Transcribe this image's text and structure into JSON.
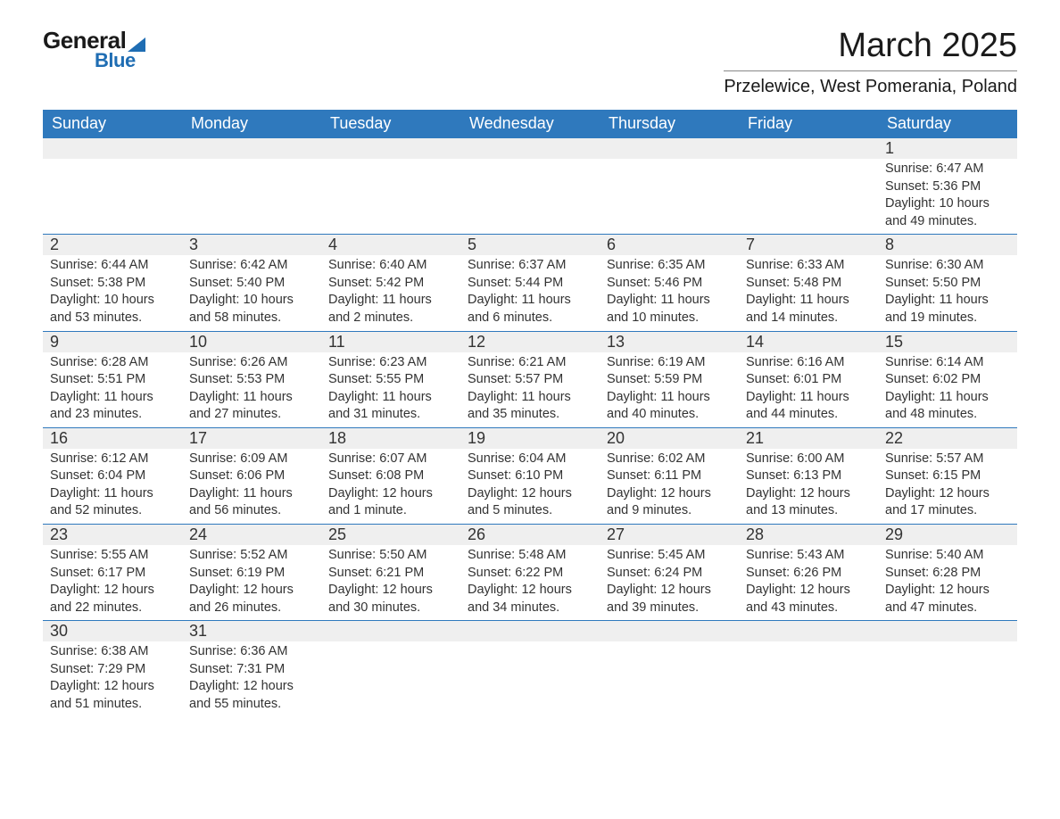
{
  "logo": {
    "text1": "General",
    "text2": "Blue"
  },
  "title": "March 2025",
  "subtitle": "Przelewice, West Pomerania, Poland",
  "colors": {
    "header_bg": "#2f79bd",
    "header_text": "#ffffff",
    "daynum_bg": "#efefef",
    "body_text": "#333333",
    "rule": "#2f79bd",
    "logo_accent": "#1f6db3"
  },
  "typography": {
    "title_fontsize": 38,
    "subtitle_fontsize": 20,
    "header_fontsize": 18,
    "daynum_fontsize": 18,
    "body_fontsize": 14.5
  },
  "weekdays": [
    "Sunday",
    "Monday",
    "Tuesday",
    "Wednesday",
    "Thursday",
    "Friday",
    "Saturday"
  ],
  "weeks": [
    [
      null,
      null,
      null,
      null,
      null,
      null,
      {
        "n": "1",
        "sunrise": "6:47 AM",
        "sunset": "5:36 PM",
        "daylight": "10 hours and 49 minutes."
      }
    ],
    [
      {
        "n": "2",
        "sunrise": "6:44 AM",
        "sunset": "5:38 PM",
        "daylight": "10 hours and 53 minutes."
      },
      {
        "n": "3",
        "sunrise": "6:42 AM",
        "sunset": "5:40 PM",
        "daylight": "10 hours and 58 minutes."
      },
      {
        "n": "4",
        "sunrise": "6:40 AM",
        "sunset": "5:42 PM",
        "daylight": "11 hours and 2 minutes."
      },
      {
        "n": "5",
        "sunrise": "6:37 AM",
        "sunset": "5:44 PM",
        "daylight": "11 hours and 6 minutes."
      },
      {
        "n": "6",
        "sunrise": "6:35 AM",
        "sunset": "5:46 PM",
        "daylight": "11 hours and 10 minutes."
      },
      {
        "n": "7",
        "sunrise": "6:33 AM",
        "sunset": "5:48 PM",
        "daylight": "11 hours and 14 minutes."
      },
      {
        "n": "8",
        "sunrise": "6:30 AM",
        "sunset": "5:50 PM",
        "daylight": "11 hours and 19 minutes."
      }
    ],
    [
      {
        "n": "9",
        "sunrise": "6:28 AM",
        "sunset": "5:51 PM",
        "daylight": "11 hours and 23 minutes."
      },
      {
        "n": "10",
        "sunrise": "6:26 AM",
        "sunset": "5:53 PM",
        "daylight": "11 hours and 27 minutes."
      },
      {
        "n": "11",
        "sunrise": "6:23 AM",
        "sunset": "5:55 PM",
        "daylight": "11 hours and 31 minutes."
      },
      {
        "n": "12",
        "sunrise": "6:21 AM",
        "sunset": "5:57 PM",
        "daylight": "11 hours and 35 minutes."
      },
      {
        "n": "13",
        "sunrise": "6:19 AM",
        "sunset": "5:59 PM",
        "daylight": "11 hours and 40 minutes."
      },
      {
        "n": "14",
        "sunrise": "6:16 AM",
        "sunset": "6:01 PM",
        "daylight": "11 hours and 44 minutes."
      },
      {
        "n": "15",
        "sunrise": "6:14 AM",
        "sunset": "6:02 PM",
        "daylight": "11 hours and 48 minutes."
      }
    ],
    [
      {
        "n": "16",
        "sunrise": "6:12 AM",
        "sunset": "6:04 PM",
        "daylight": "11 hours and 52 minutes."
      },
      {
        "n": "17",
        "sunrise": "6:09 AM",
        "sunset": "6:06 PM",
        "daylight": "11 hours and 56 minutes."
      },
      {
        "n": "18",
        "sunrise": "6:07 AM",
        "sunset": "6:08 PM",
        "daylight": "12 hours and 1 minute."
      },
      {
        "n": "19",
        "sunrise": "6:04 AM",
        "sunset": "6:10 PM",
        "daylight": "12 hours and 5 minutes."
      },
      {
        "n": "20",
        "sunrise": "6:02 AM",
        "sunset": "6:11 PM",
        "daylight": "12 hours and 9 minutes."
      },
      {
        "n": "21",
        "sunrise": "6:00 AM",
        "sunset": "6:13 PM",
        "daylight": "12 hours and 13 minutes."
      },
      {
        "n": "22",
        "sunrise": "5:57 AM",
        "sunset": "6:15 PM",
        "daylight": "12 hours and 17 minutes."
      }
    ],
    [
      {
        "n": "23",
        "sunrise": "5:55 AM",
        "sunset": "6:17 PM",
        "daylight": "12 hours and 22 minutes."
      },
      {
        "n": "24",
        "sunrise": "5:52 AM",
        "sunset": "6:19 PM",
        "daylight": "12 hours and 26 minutes."
      },
      {
        "n": "25",
        "sunrise": "5:50 AM",
        "sunset": "6:21 PM",
        "daylight": "12 hours and 30 minutes."
      },
      {
        "n": "26",
        "sunrise": "5:48 AM",
        "sunset": "6:22 PM",
        "daylight": "12 hours and 34 minutes."
      },
      {
        "n": "27",
        "sunrise": "5:45 AM",
        "sunset": "6:24 PM",
        "daylight": "12 hours and 39 minutes."
      },
      {
        "n": "28",
        "sunrise": "5:43 AM",
        "sunset": "6:26 PM",
        "daylight": "12 hours and 43 minutes."
      },
      {
        "n": "29",
        "sunrise": "5:40 AM",
        "sunset": "6:28 PM",
        "daylight": "12 hours and 47 minutes."
      }
    ],
    [
      {
        "n": "30",
        "sunrise": "6:38 AM",
        "sunset": "7:29 PM",
        "daylight": "12 hours and 51 minutes."
      },
      {
        "n": "31",
        "sunrise": "6:36 AM",
        "sunset": "7:31 PM",
        "daylight": "12 hours and 55 minutes."
      },
      null,
      null,
      null,
      null,
      null
    ]
  ],
  "labels": {
    "sunrise_prefix": "Sunrise: ",
    "sunset_prefix": "Sunset: ",
    "daylight_prefix": "Daylight: "
  }
}
